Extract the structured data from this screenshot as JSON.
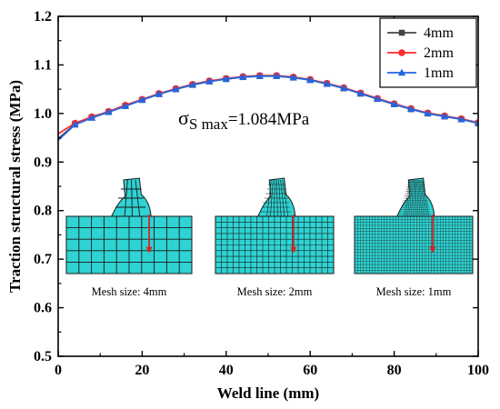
{
  "chart_data": {
    "type": "line",
    "title": "",
    "xlabel": "Weld line (mm)",
    "ylabel": "Traction structural stress (MPa)",
    "xlim": [
      0,
      100
    ],
    "ylim": [
      0.5,
      1.2
    ],
    "xticks": [
      "0",
      "20",
      "40",
      "60",
      "80",
      "100"
    ],
    "yticks": [
      "0.5",
      "0.6",
      "0.7",
      "0.8",
      "0.9",
      "1.0",
      "1.1",
      "1.2"
    ],
    "grid": false,
    "legend_position": "top-right",
    "annotation": {
      "sym": "σ",
      "sub": "S max",
      "rest": "=1.084MPa"
    },
    "x": [
      0,
      4,
      8,
      12,
      16,
      20,
      24,
      28,
      32,
      36,
      40,
      44,
      48,
      52,
      56,
      60,
      64,
      68,
      72,
      76,
      80,
      84,
      88,
      92,
      96,
      100
    ],
    "series": [
      {
        "name": "4mm",
        "color": "#444444",
        "marker": "square",
        "values": [
          0.948,
          0.978,
          0.992,
          1.003,
          1.016,
          1.028,
          1.04,
          1.05,
          1.059,
          1.066,
          1.071,
          1.075,
          1.077,
          1.077,
          1.074,
          1.069,
          1.061,
          1.052,
          1.041,
          1.03,
          1.019,
          1.009,
          1.0,
          0.994,
          0.988,
          0.98
        ]
      },
      {
        "name": "2mm",
        "color": "#ff2a2a",
        "marker": "circle",
        "values": [
          0.958,
          0.98,
          0.993,
          1.004,
          1.017,
          1.029,
          1.041,
          1.051,
          1.06,
          1.067,
          1.072,
          1.076,
          1.078,
          1.078,
          1.075,
          1.07,
          1.062,
          1.053,
          1.042,
          1.031,
          1.02,
          1.01,
          1.001,
          0.995,
          0.989,
          0.981
        ]
      },
      {
        "name": "1mm",
        "color": "#2266dd",
        "marker": "triangle",
        "values": [
          0.945,
          0.977,
          0.991,
          1.003,
          1.015,
          1.028,
          1.04,
          1.05,
          1.059,
          1.066,
          1.071,
          1.075,
          1.077,
          1.077,
          1.074,
          1.069,
          1.061,
          1.052,
          1.041,
          1.03,
          1.019,
          1.009,
          1.0,
          0.994,
          0.988,
          0.98
        ]
      }
    ],
    "insets": [
      {
        "caption": "Mesh size: 4mm",
        "divisions": 10
      },
      {
        "caption": "Mesh size: 2mm",
        "divisions": 20
      },
      {
        "caption": "Mesh size: 1mm",
        "divisions": 40
      }
    ],
    "inset_style": {
      "fill": "#2fd3d3",
      "line": "#1a1a1a",
      "arrow": "#dd2222"
    }
  }
}
